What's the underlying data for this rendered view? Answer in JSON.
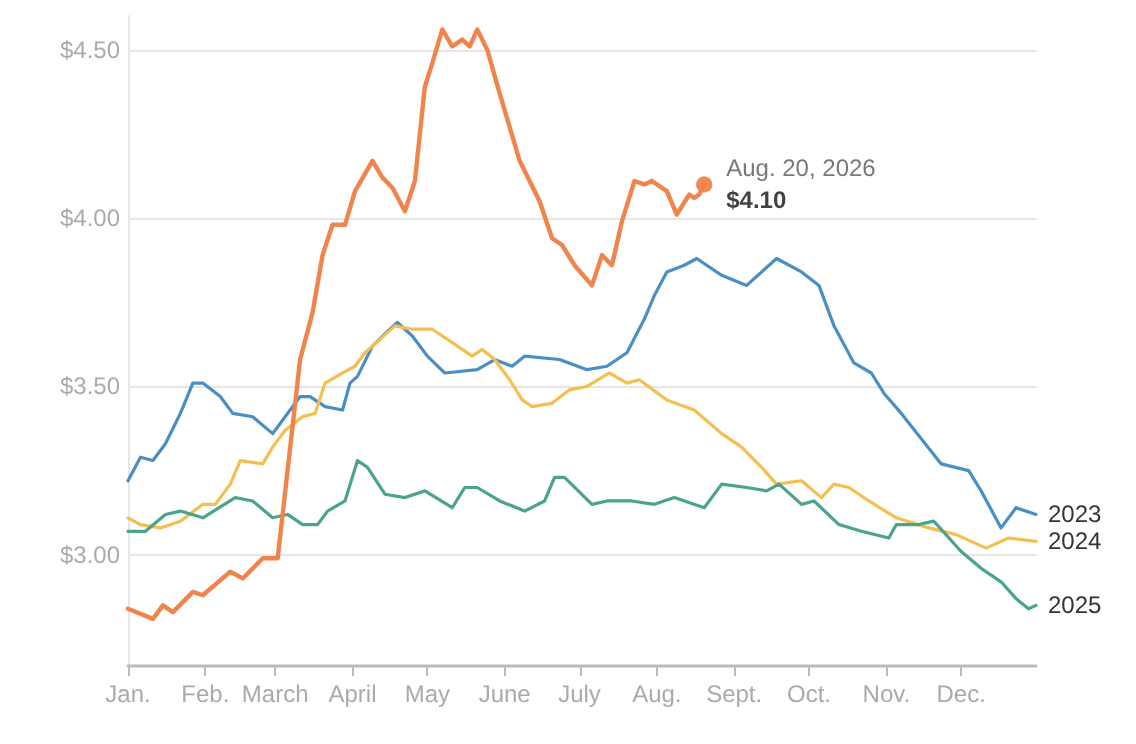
{
  "chart_data": {
    "type": "line",
    "xlim": [
      "--01-01",
      "--12-31"
    ],
    "ylim": [
      2.67,
      4.6
    ],
    "xticks": [
      {
        "value": "--01-01",
        "label": "Jan."
      },
      {
        "value": "--02-01",
        "label": "Feb."
      },
      {
        "value": "--03-01",
        "label": "March"
      },
      {
        "value": "--04-01",
        "label": "April"
      },
      {
        "value": "--05-01",
        "label": "May"
      },
      {
        "value": "--06-01",
        "label": "June"
      },
      {
        "value": "--07-01",
        "label": "July"
      },
      {
        "value": "--08-01",
        "label": "Aug."
      },
      {
        "value": "--09-01",
        "label": "Sept."
      },
      {
        "value": "--10-01",
        "label": "Oct."
      },
      {
        "value": "--11-01",
        "label": "Nov."
      },
      {
        "value": "--12-01",
        "label": "Dec."
      }
    ],
    "yticks": [
      {
        "value": 3,
        "label": "$3.00"
      },
      {
        "value": 3.5,
        "label": "$3.50"
      },
      {
        "value": 4,
        "label": "$4.00"
      },
      {
        "value": 4.5,
        "label": "$4.50"
      }
    ],
    "grid": "y",
    "legend": false,
    "marker": "none",
    "line_style": "solid",
    "annotations": [
      {
        "text": "Aug. 20, 2026",
        "x": "--08-20",
        "y": 4.1
      },
      {
        "text": "$4.10",
        "x": "--08-20",
        "y": 4.1
      }
    ],
    "series": [
      {
        "color": "#f0844c",
        "x": [
          "--01-01",
          "--01-11",
          "--01-15",
          "--01-19",
          "--01-27",
          "--01-31",
          "--02-11",
          "--02-16",
          "--02-24",
          "--03-02",
          "--03-11",
          "--03-16",
          "--03-20",
          "--03-24",
          "--03-29",
          "--04-02",
          "--04-09",
          "--04-13",
          "--04-17",
          "--04-22",
          "--04-26",
          "--04-30",
          "--05-03",
          "--05-07",
          "--05-11",
          "--05-15",
          "--05-18",
          "--05-21",
          "--05-25",
          "--05-30",
          "--06-07",
          "--06-15",
          "--06-20",
          "--06-24",
          "--06-29",
          "--07-06",
          "--07-10",
          "--07-14",
          "--07-18",
          "--07-23",
          "--07-27",
          "--07-30",
          "--08-05",
          "--08-09",
          "--08-14",
          "--08-16",
          "--08-18",
          "--08-20"
        ],
        "values": [
          2.84,
          2.81,
          2.85,
          2.83,
          2.89,
          2.88,
          2.95,
          2.93,
          2.99,
          2.99,
          3.58,
          3.72,
          3.89,
          3.98,
          3.98,
          4.08,
          4.17,
          4.12,
          4.09,
          4.02,
          4.11,
          4.39,
          4.46,
          4.56,
          4.51,
          4.53,
          4.51,
          4.56,
          4.5,
          4.37,
          4.17,
          4.05,
          3.94,
          3.92,
          3.86,
          3.8,
          3.89,
          3.86,
          3.99,
          4.11,
          4.1,
          4.11,
          4.08,
          4.01,
          4.07,
          4.06,
          4.07,
          4.1
        ]
      },
      {
        "name": "2023",
        "color": "#4a8fc4",
        "x": [
          "--01-01",
          "--01-06",
          "--01-11",
          "--01-16",
          "--01-22",
          "--01-27",
          "--01-31",
          "--02-07",
          "--02-12",
          "--02-20",
          "--02-28",
          "--03-05",
          "--03-11",
          "--03-15",
          "--03-21",
          "--03-28",
          "--03-31",
          "--04-03",
          "--04-09",
          "--04-16",
          "--04-19",
          "--04-25",
          "--05-01",
          "--05-08",
          "--05-21",
          "--05-28",
          "--06-04",
          "--06-09",
          "--06-23",
          "--07-04",
          "--07-12",
          "--07-20",
          "--07-27",
          "--07-31",
          "--08-05",
          "--08-12",
          "--08-17",
          "--08-27",
          "--09-06",
          "--09-18",
          "--09-28",
          "--10-05",
          "--10-11",
          "--10-19",
          "--10-26",
          "--10-31",
          "--11-07",
          "--11-23",
          "--12-04",
          "--12-09",
          "--12-17",
          "--12-23",
          "--12-31"
        ],
        "values": [
          3.22,
          3.29,
          3.28,
          3.33,
          3.42,
          3.51,
          3.51,
          3.47,
          3.42,
          3.41,
          3.36,
          3.41,
          3.47,
          3.47,
          3.44,
          3.43,
          3.51,
          3.53,
          3.62,
          3.67,
          3.69,
          3.65,
          3.59,
          3.54,
          3.55,
          3.58,
          3.56,
          3.59,
          3.58,
          3.55,
          3.56,
          3.6,
          3.7,
          3.77,
          3.84,
          3.86,
          3.88,
          3.83,
          3.8,
          3.88,
          3.84,
          3.8,
          3.68,
          3.57,
          3.54,
          3.48,
          3.42,
          3.27,
          3.25,
          3.19,
          3.08,
          3.14,
          3.12
        ]
      },
      {
        "name": "2024",
        "color": "#f5bf4f",
        "x": [
          "--01-01",
          "--01-06",
          "--01-14",
          "--01-22",
          "--01-31",
          "--02-05",
          "--02-11",
          "--02-15",
          "--02-24",
          "--02-28",
          "--03-05",
          "--03-12",
          "--03-17",
          "--03-21",
          "--03-28",
          "--04-02",
          "--04-06",
          "--04-12",
          "--04-18",
          "--04-25",
          "--05-03",
          "--05-11",
          "--05-19",
          "--05-23",
          "--05-28",
          "--06-03",
          "--06-08",
          "--06-12",
          "--06-20",
          "--06-27",
          "--07-04",
          "--07-13",
          "--07-20",
          "--07-25",
          "--08-05",
          "--08-16",
          "--08-27",
          "--09-04",
          "--09-12",
          "--09-18",
          "--09-28",
          "--10-06",
          "--10-11",
          "--10-17",
          "--10-25",
          "--11-05",
          "--11-18",
          "--11-29",
          "--12-11",
          "--12-20",
          "--12-31"
        ],
        "values": [
          3.11,
          3.09,
          3.08,
          3.1,
          3.15,
          3.15,
          3.21,
          3.28,
          3.27,
          3.32,
          3.37,
          3.41,
          3.42,
          3.51,
          3.54,
          3.56,
          3.6,
          3.64,
          3.68,
          3.67,
          3.67,
          3.63,
          3.59,
          3.61,
          3.58,
          3.52,
          3.46,
          3.44,
          3.45,
          3.49,
          3.5,
          3.54,
          3.51,
          3.52,
          3.46,
          3.43,
          3.36,
          3.32,
          3.26,
          3.21,
          3.22,
          3.17,
          3.21,
          3.2,
          3.16,
          3.11,
          3.08,
          3.06,
          3.02,
          3.05,
          3.04
        ]
      },
      {
        "name": "2025",
        "color": "#4aa38b",
        "x": [
          "--01-01",
          "--01-08",
          "--01-16",
          "--01-22",
          "--01-31",
          "--02-13",
          "--02-20",
          "--02-28",
          "--03-06",
          "--03-12",
          "--03-18",
          "--03-22",
          "--03-29",
          "--04-03",
          "--04-07",
          "--04-14",
          "--04-22",
          "--04-30",
          "--05-11",
          "--05-16",
          "--05-21",
          "--05-30",
          "--06-09",
          "--06-17",
          "--06-21",
          "--06-25",
          "--07-06",
          "--07-12",
          "--07-22",
          "--07-31",
          "--08-08",
          "--08-20",
          "--08-27",
          "--09-06",
          "--09-14",
          "--09-19",
          "--09-28",
          "--10-03",
          "--10-13",
          "--10-22",
          "--11-02",
          "--11-05",
          "--11-14",
          "--11-20",
          "--12-01",
          "--12-09",
          "--12-17",
          "--12-23",
          "--12-28",
          "--12-31"
        ],
        "values": [
          3.07,
          3.07,
          3.12,
          3.13,
          3.11,
          3.17,
          3.16,
          3.11,
          3.12,
          3.09,
          3.09,
          3.13,
          3.16,
          3.28,
          3.26,
          3.18,
          3.17,
          3.19,
          3.14,
          3.2,
          3.2,
          3.16,
          3.13,
          3.16,
          3.23,
          3.23,
          3.15,
          3.16,
          3.16,
          3.15,
          3.17,
          3.14,
          3.21,
          3.2,
          3.19,
          3.21,
          3.15,
          3.16,
          3.09,
          3.07,
          3.05,
          3.09,
          3.09,
          3.1,
          3.01,
          2.96,
          2.92,
          2.87,
          2.84,
          2.85
        ]
      }
    ]
  }
}
